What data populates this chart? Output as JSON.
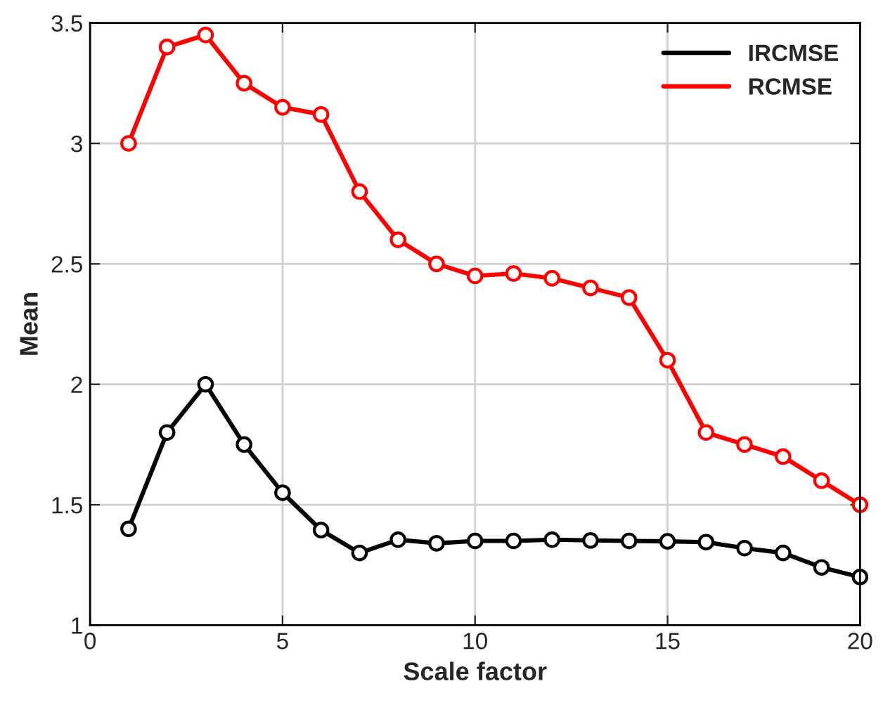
{
  "chart_data": {
    "type": "line",
    "xlabel": "Scale factor",
    "ylabel": "Mean",
    "x": [
      1,
      2,
      3,
      4,
      5,
      6,
      7,
      8,
      9,
      10,
      11,
      12,
      13,
      14,
      15,
      16,
      17,
      18,
      19,
      20
    ],
    "series": [
      {
        "name": "IRCMSE",
        "color": "#000000",
        "values": [
          1.4,
          1.8,
          2.0,
          1.75,
          1.55,
          1.395,
          1.3,
          1.355,
          1.34,
          1.35,
          1.35,
          1.355,
          1.352,
          1.35,
          1.348,
          1.345,
          1.32,
          1.3,
          1.24,
          1.2
        ]
      },
      {
        "name": "RCMSE",
        "color": "#ff0000",
        "values": [
          3.0,
          3.4,
          3.45,
          3.25,
          3.15,
          3.12,
          2.8,
          2.6,
          2.5,
          2.45,
          2.46,
          2.44,
          2.4,
          2.36,
          2.1,
          1.8,
          1.75,
          1.7,
          1.6,
          1.5
        ]
      }
    ],
    "xlim": [
      0,
      20
    ],
    "xticks": [
      0,
      5,
      10,
      15,
      20
    ],
    "ylim": [
      1,
      3.5
    ],
    "yticks": [
      1,
      1.5,
      2,
      2.5,
      3,
      3.5
    ],
    "grid": true,
    "legend": "top right",
    "marker": "circle",
    "line_style": "solid"
  }
}
